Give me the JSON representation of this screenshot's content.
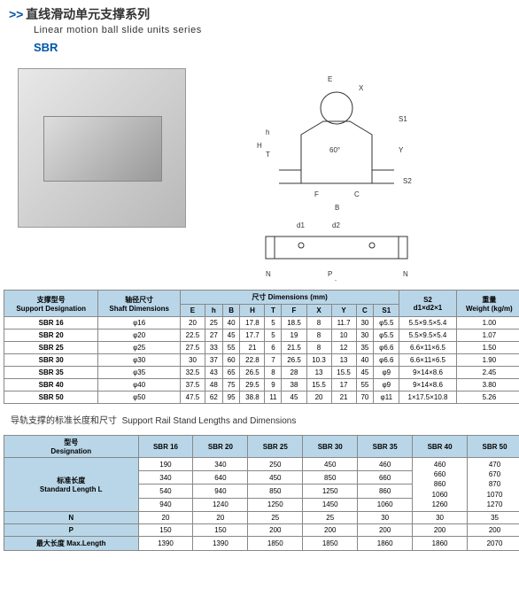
{
  "header": {
    "arrow": ">>",
    "title_cn": "直线滑动单元支撑系列",
    "title_en": "Linear motion ball slide units series",
    "sbr": "SBR"
  },
  "diagram_labels": [
    "E",
    "X",
    "S1",
    "Y",
    "h",
    "T",
    "H",
    "60°",
    "F",
    "C",
    "S2",
    "B",
    "d2",
    "d1",
    "N",
    "P",
    "N",
    "L"
  ],
  "table1": {
    "header_cn_1": "支撑型号",
    "header_cn_2": "轴径尺寸",
    "header_en_1": "Support Designation",
    "header_en_2": "Shaft Dimensions",
    "dim_cn": "尺寸",
    "dim_en": "Dimensions (mm)",
    "weight_cn": "重量",
    "weight_en": "Weight (kg/m)",
    "s2_label": "S2",
    "s2_sub": "d1×d2×1",
    "cols": [
      "E",
      "h",
      "B",
      "H",
      "T",
      "F",
      "X",
      "Y",
      "C",
      "S1"
    ],
    "rows": [
      {
        "name": "SBR 16",
        "shaft": "φ16",
        "v": [
          "20",
          "25",
          "40",
          "17.8",
          "5",
          "18.5",
          "8",
          "11.7",
          "30",
          "φ5.5"
        ],
        "s2": "5.5×9.5×5.4",
        "w": "1.00"
      },
      {
        "name": "SBR 20",
        "shaft": "φ20",
        "v": [
          "22.5",
          "27",
          "45",
          "17.7",
          "5",
          "19",
          "8",
          "10",
          "30",
          "φ5.5"
        ],
        "s2": "5.5×9.5×5.4",
        "w": "1.07"
      },
      {
        "name": "SBR 25",
        "shaft": "φ25",
        "v": [
          "27.5",
          "33",
          "55",
          "21",
          "6",
          "21.5",
          "8",
          "12",
          "35",
          "φ6.6"
        ],
        "s2": "6.6×11×6.5",
        "w": "1.50"
      },
      {
        "name": "SBR 30",
        "shaft": "φ30",
        "v": [
          "30",
          "37",
          "60",
          "22.8",
          "7",
          "26.5",
          "10.3",
          "13",
          "40",
          "φ6.6"
        ],
        "s2": "6.6×11×6.5",
        "w": "1.90"
      },
      {
        "name": "SBR 35",
        "shaft": "φ35",
        "v": [
          "32.5",
          "43",
          "65",
          "26.5",
          "8",
          "28",
          "13",
          "15.5",
          "45",
          "φ9"
        ],
        "s2": "9×14×8.6",
        "w": "2.45"
      },
      {
        "name": "SBR 40",
        "shaft": "φ40",
        "v": [
          "37.5",
          "48",
          "75",
          "29.5",
          "9",
          "38",
          "15.5",
          "17",
          "55",
          "φ9"
        ],
        "s2": "9×14×8.6",
        "w": "3.80"
      },
      {
        "name": "SBR 50",
        "shaft": "φ50",
        "v": [
          "47.5",
          "62",
          "95",
          "38.8",
          "11",
          "45",
          "20",
          "21",
          "70",
          "φ11"
        ],
        "s2": "1×17.5×10.8",
        "w": "5.26"
      }
    ]
  },
  "section2": {
    "title_cn": "导轨支撑的标准长度和尺寸",
    "title_en": "Support Rail Stand Lengths and Dimensions"
  },
  "table2": {
    "header_cn": "型号",
    "header_en": "Designation",
    "cols": [
      "SBR 16",
      "SBR 20",
      "SBR 25",
      "SBR 30",
      "SBR 35",
      "SBR 40",
      "SBR 50"
    ],
    "std_cn": "标准长度",
    "std_en": "Standard Length L",
    "std_rows": [
      [
        "190",
        "340",
        "250",
        "450",
        "460",
        "460",
        "470"
      ],
      [
        "340",
        "640",
        "450",
        "850",
        "660",
        "660",
        "670"
      ],
      [
        "540",
        "940",
        "850",
        "1250",
        "860",
        "860",
        "870"
      ],
      [
        "940",
        "1240",
        "1250",
        "1450",
        "1060",
        "1060",
        "1070"
      ],
      [
        "",
        "",
        "",
        "",
        "",
        "1260",
        "1270"
      ]
    ],
    "n_label": "N",
    "n": [
      "20",
      "20",
      "25",
      "25",
      "30",
      "30",
      "35"
    ],
    "p_label": "P",
    "p": [
      "150",
      "150",
      "200",
      "200",
      "200",
      "200",
      "200"
    ],
    "max_cn": "最大长度",
    "max_en": "Max.Length",
    "max": [
      "1390",
      "1390",
      "1850",
      "1850",
      "1860",
      "1860",
      "2070"
    ]
  }
}
